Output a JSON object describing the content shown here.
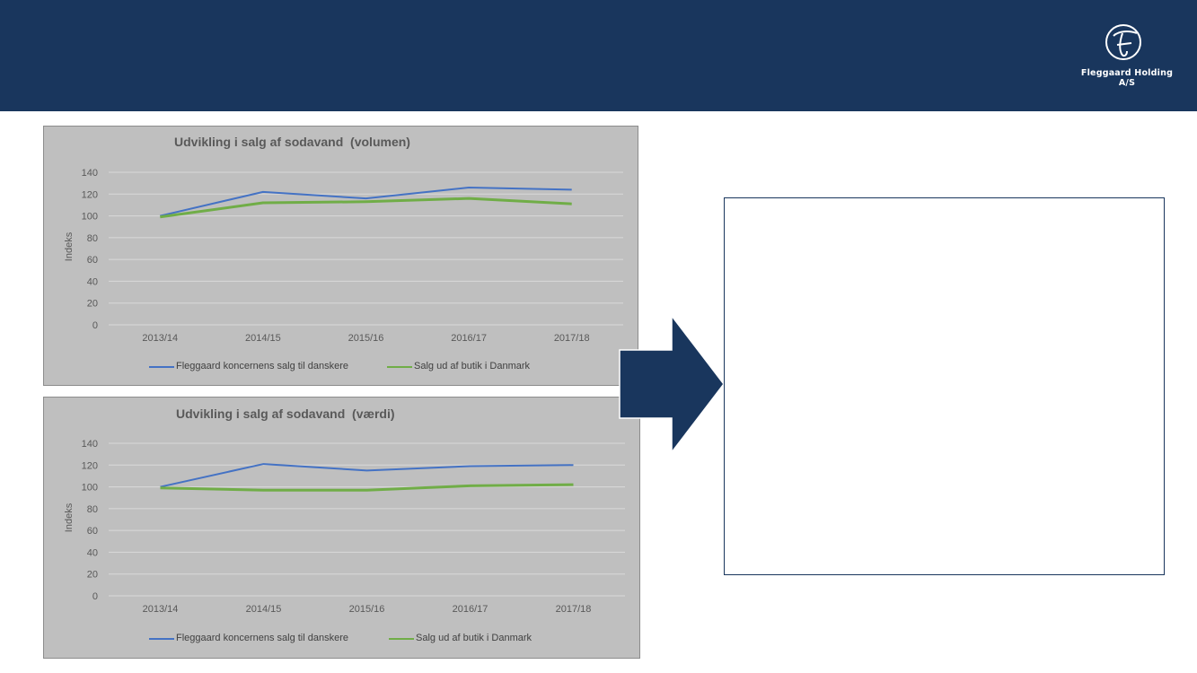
{
  "header": {
    "company_name": "Fleggaard Holding A/S",
    "background_color": "#19365d"
  },
  "colors": {
    "series_blue": "#4472c4",
    "series_green": "#70ad47",
    "panel_bg": "#bfbfbf",
    "grid": "#d9d9d9"
  },
  "chart_data": [
    {
      "type": "line",
      "title": "Udvikling i salg af sodavand  (volumen)",
      "ylabel": "Indeks",
      "xlabel": "",
      "categories": [
        "2013/14",
        "2014/15",
        "2015/16",
        "2016/17",
        "2017/18"
      ],
      "ylim": [
        0,
        140
      ],
      "yticks": [
        0,
        20,
        40,
        60,
        80,
        100,
        120,
        140
      ],
      "grid": true,
      "legend_position": "bottom",
      "series": [
        {
          "name": "Fleggaard koncernens salg til danskere",
          "values": [
            100,
            122,
            116,
            126,
            124
          ]
        },
        {
          "name": "Salg ud af butik i Danmark",
          "values": [
            99,
            112,
            113,
            116,
            111
          ]
        }
      ]
    },
    {
      "type": "line",
      "title": "Udvikling i salg af sodavand  (værdi)",
      "ylabel": "Indeks",
      "xlabel": "",
      "categories": [
        "2013/14",
        "2014/15",
        "2015/16",
        "2016/17",
        "2017/18"
      ],
      "ylim": [
        0,
        140
      ],
      "yticks": [
        0,
        20,
        40,
        60,
        80,
        100,
        120,
        140
      ],
      "grid": true,
      "legend_position": "bottom",
      "series": [
        {
          "name": "Fleggaard koncernens salg til danskere",
          "values": [
            100,
            121,
            115,
            119,
            120
          ]
        },
        {
          "name": "Salg ud af butik i Danmark",
          "values": [
            99,
            97,
            97,
            101,
            102
          ]
        }
      ]
    }
  ]
}
